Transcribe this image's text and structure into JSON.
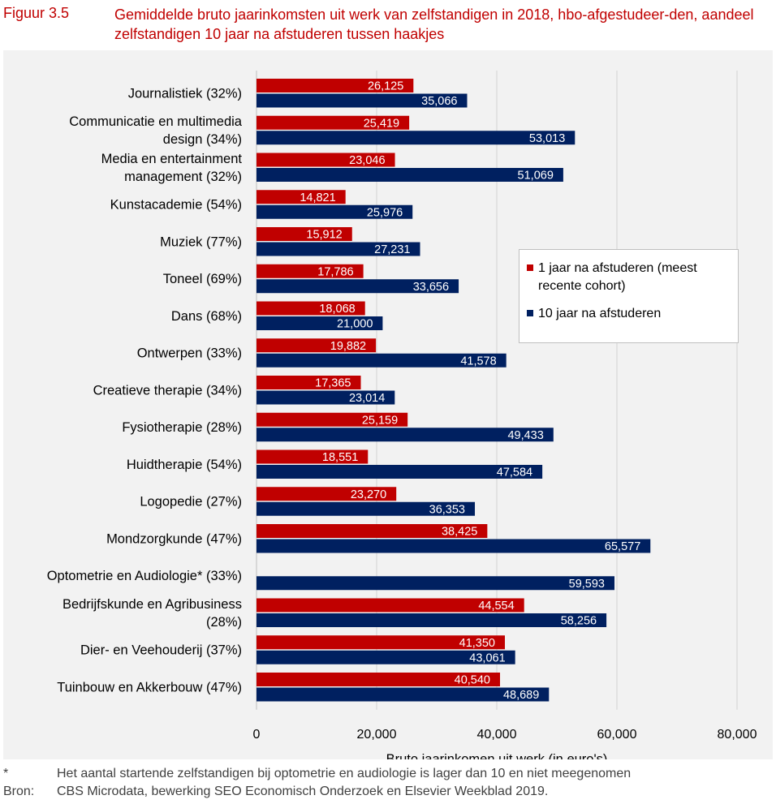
{
  "figure": {
    "number": "Figuur 3.5",
    "title": "Gemiddelde bruto jaarinkomsten uit werk van zelfstandigen in 2018, hbo-afgestudeer-den, aandeel zelfstandigen 10 jaar na afstuderen tussen haakjes"
  },
  "chart_data": {
    "type": "bar",
    "orientation": "horizontal",
    "categories": [
      "Journalistiek (32%)",
      "Communicatie en multimedia design (34%)",
      "Media en entertainment management (32%)",
      "Kunstacademie (54%)",
      "Muziek (77%)",
      "Toneel (69%)",
      "Dans (68%)",
      "Ontwerpen (33%)",
      "Creatieve therapie (34%)",
      "Fysiotherapie (28%)",
      "Huidtherapie (54%)",
      "Logopedie (27%)",
      "Mondzorgkunde (47%)",
      "Optometrie en Audiologie* (33%)",
      "Bedrijfskunde en Agribusiness (28%)",
      "Dier- en Veehouderij (37%)",
      "Tuinbouw en Akkerbouw (47%)"
    ],
    "category_lines": [
      [
        "Journalistiek (32%)"
      ],
      [
        "Communicatie en multimedia",
        "design (34%)"
      ],
      [
        "Media en entertainment",
        "management (32%)"
      ],
      [
        "Kunstacademie (54%)"
      ],
      [
        "Muziek (77%)"
      ],
      [
        "Toneel (69%)"
      ],
      [
        "Dans (68%)"
      ],
      [
        "Ontwerpen (33%)"
      ],
      [
        "Creatieve therapie (34%)"
      ],
      [
        "Fysiotherapie (28%)"
      ],
      [
        "Huidtherapie (54%)"
      ],
      [
        "Logopedie (27%)"
      ],
      [
        "Mondzorgkunde (47%)"
      ],
      [
        "Optometrie en Audiologie* (33%)"
      ],
      [
        "Bedrijfskunde en Agribusiness",
        "(28%)"
      ],
      [
        "Dier- en Veehouderij (37%)"
      ],
      [
        "Tuinbouw en Akkerbouw (47%)"
      ]
    ],
    "series": [
      {
        "name": "1 jaar na afstuderen (meest recente cohort)",
        "color": "#c00000",
        "values": [
          26125,
          25419,
          23046,
          14821,
          15912,
          17786,
          18068,
          19882,
          17365,
          25159,
          18551,
          23270,
          38425,
          null,
          44554,
          41350,
          40540
        ],
        "labels": [
          "26,125",
          "25,419",
          "23,046",
          "14,821",
          "15,912",
          "17,786",
          "18,068",
          "19,882",
          "17,365",
          "25,159",
          "18,551",
          "23,270",
          "38,425",
          "",
          "44,554",
          "41,350",
          "40,540"
        ]
      },
      {
        "name": "10 jaar na afstuderen",
        "color": "#002060",
        "values": [
          35066,
          53013,
          51069,
          25976,
          27231,
          33656,
          21000,
          41578,
          23014,
          49433,
          47584,
          36353,
          65577,
          59593,
          58256,
          43061,
          48689
        ],
        "labels": [
          "35,066",
          "53,013",
          "51,069",
          "25,976",
          "27,231",
          "33,656",
          "21,000",
          "41,578",
          "23,014",
          "49,433",
          "47,584",
          "36,353",
          "65,577",
          "59,593",
          "58,256",
          "43,061",
          "48,689"
        ]
      }
    ],
    "xlabel": "Bruto jaarinkomen uit werk (in euro's)",
    "xlim": [
      0,
      80000
    ],
    "xticks": [
      0,
      20000,
      40000,
      60000,
      80000
    ],
    "xtick_labels": [
      "0",
      "20,000",
      "40,000",
      "60,000",
      "80,000"
    ],
    "grid": true,
    "legend_position": "right, upper-middle"
  },
  "legend": {
    "item1": "1 jaar na afstuderen (meest recente cohort)",
    "item2": "10 jaar na afstuderen"
  },
  "footnotes": [
    {
      "key": "*",
      "text": "Het aantal startende zelfstandigen bij optometrie en audiologie is lager dan 10 en niet meegenomen"
    },
    {
      "key": "Bron:",
      "text": "CBS Microdata, bewerking SEO Economisch Onderzoek en Elsevier Weekblad 2019."
    }
  ]
}
